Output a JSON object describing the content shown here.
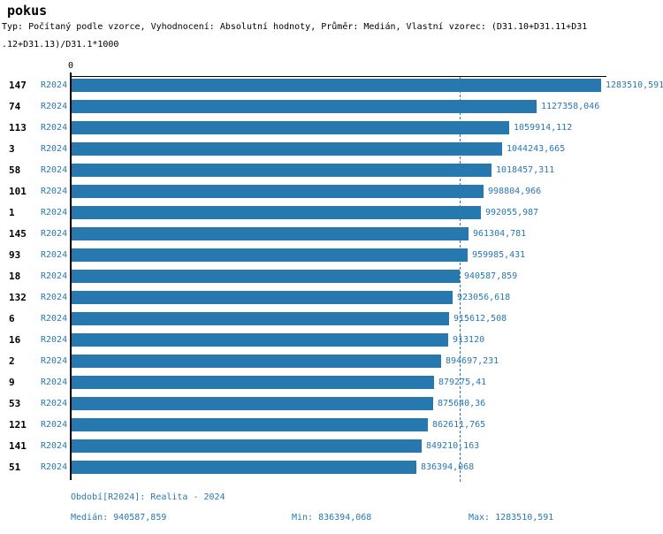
{
  "title": "pokus",
  "subtitle_line1": "Typ: Počítaný podle vzorce, Vyhodnocení: Absolutní hodnoty, Průměr: Medián, Vlastní vzorec: (D31.10+D31.11+D31",
  "subtitle_line2": ".12+D31.13)/D31.1*1000",
  "colors": {
    "bar": "#2878b0",
    "accent_text": "#2878b0",
    "axis": "#000000",
    "background": "#ffffff"
  },
  "chart_data": {
    "type": "bar",
    "orientation": "horizontal",
    "title": "pokus",
    "x_axis_zero_label": "0",
    "xlim": [
      0,
      1283510.591
    ],
    "grid": false,
    "legend_position": "none",
    "median_line": 940587.859,
    "categories": [
      "147",
      "74",
      "113",
      "3",
      "58",
      "101",
      "1",
      "145",
      "93",
      "18",
      "132",
      "6",
      "16",
      "2",
      "9",
      "53",
      "121",
      "141",
      "51"
    ],
    "series": [
      {
        "name": "R2024",
        "values": [
          1283510.591,
          1127358.046,
          1059914.112,
          1044243.665,
          1018457.311,
          998804.966,
          992055.987,
          961304.781,
          959985.431,
          940587.859,
          923056.618,
          915612.508,
          913120,
          894697.231,
          879275.41,
          875640.36,
          862611.765,
          849210.163,
          836394.068
        ],
        "value_labels": [
          "1283510,591",
          "1127358,046",
          "1059914,112",
          "1044243,665",
          "1018457,311",
          "998804,966",
          "992055,987",
          "961304,781",
          "959985,431",
          "940587,859",
          "923056,618",
          "915612,508",
          "913120",
          "894697,231",
          "879275,41",
          "875640,36",
          "862611,765",
          "849210,163",
          "836394,068"
        ]
      }
    ]
  },
  "footer": {
    "period": "Období[R2024]: Realita - 2024",
    "median": "Medián: 940587,859",
    "min": "Min: 836394,068",
    "max": "Max: 1283510,591"
  }
}
